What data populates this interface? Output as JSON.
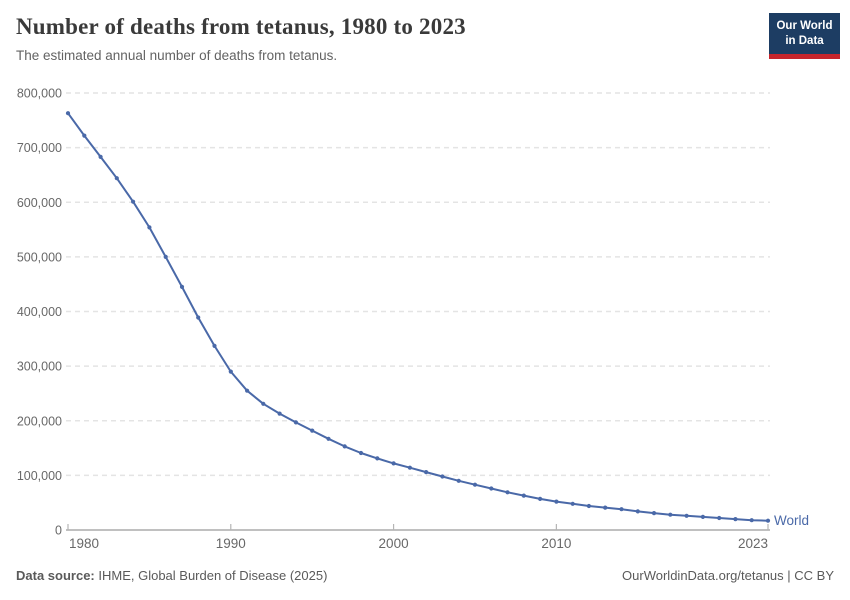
{
  "logo": {
    "line1": "Our World",
    "line2": "in Data"
  },
  "chart_data": {
    "type": "line",
    "title": "Number of deaths from tetanus, 1980 to 2023",
    "subtitle": "The estimated annual number of deaths from tetanus.",
    "xlabel": "",
    "ylabel": "",
    "x": [
      1980,
      1981,
      1982,
      1983,
      1984,
      1985,
      1986,
      1987,
      1988,
      1989,
      1990,
      1991,
      1992,
      1993,
      1994,
      1995,
      1996,
      1997,
      1998,
      1999,
      2000,
      2001,
      2002,
      2003,
      2004,
      2005,
      2006,
      2007,
      2008,
      2009,
      2010,
      2011,
      2012,
      2013,
      2014,
      2015,
      2016,
      2017,
      2018,
      2019,
      2020,
      2021,
      2022,
      2023
    ],
    "series": [
      {
        "name": "World",
        "color": "#4a69a8",
        "values": [
          763000,
          722000,
          683000,
          644000,
          601000,
          554000,
          500000,
          445000,
          389000,
          337000,
          290000,
          255000,
          231000,
          213000,
          197000,
          182000,
          167000,
          153000,
          141000,
          131000,
          122000,
          114000,
          106000,
          98000,
          90000,
          83000,
          76000,
          69000,
          63000,
          57000,
          52000,
          48000,
          44000,
          41000,
          38000,
          34000,
          31000,
          28000,
          26000,
          24000,
          22000,
          20000,
          18000,
          17000
        ]
      }
    ],
    "ylim": [
      0,
      800000
    ],
    "yticks": [
      0,
      100000,
      200000,
      300000,
      400000,
      500000,
      600000,
      700000,
      800000
    ],
    "xticks": [
      1980,
      1990,
      2000,
      2010,
      2023
    ],
    "grid": "horizontal-dashed",
    "legend_position": "end-of-line",
    "end_label": "World"
  },
  "footer": {
    "source_label": "Data source:",
    "source_text": " IHME, Global Burden of Disease (2025)",
    "credit": "OurWorldinData.org/tetanus | CC BY"
  }
}
